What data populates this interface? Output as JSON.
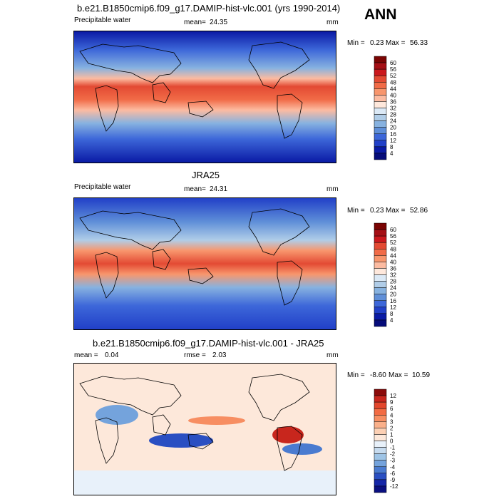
{
  "season_label": "ANN",
  "chart_data": [
    {
      "type": "heatmap",
      "title": "b.e21.B1850cmip6.f09_g17.DAMIP-hist-vlc.001 (yrs 1990-2014)",
      "variable": "Precipitable water",
      "mean_label": "mean=",
      "mean_value": "24.35",
      "units": "mm",
      "min_label": "Min =",
      "min_value": "0.23",
      "max_label": "Max =",
      "max_value": "56.33",
      "colorbar_levels": [
        "60",
        "56",
        "52",
        "48",
        "44",
        "40",
        "36",
        "32",
        "28",
        "24",
        "20",
        "16",
        "12",
        "8",
        "4"
      ],
      "colorbar_colors": [
        "#7a0403",
        "#a50f15",
        "#cb181d",
        "#e34a33",
        "#f16b47",
        "#f8966d",
        "#fcbba1",
        "#fee8dc",
        "#dbe9f6",
        "#b0cde8",
        "#87b2e0",
        "#5f8fd8",
        "#3d67d9",
        "#2140c8",
        "#0a1aa5",
        "#060c7a"
      ],
      "range": [
        0,
        64
      ]
    },
    {
      "type": "heatmap",
      "title": "JRA25",
      "variable": "Precipitable water",
      "mean_label": "mean=",
      "mean_value": "24.31",
      "units": "mm",
      "min_label": "Min =",
      "min_value": "0.23",
      "max_label": "Max =",
      "max_value": "52.86",
      "colorbar_levels": [
        "60",
        "56",
        "52",
        "48",
        "44",
        "40",
        "36",
        "32",
        "28",
        "24",
        "20",
        "16",
        "12",
        "8",
        "4"
      ],
      "colorbar_colors": [
        "#7a0403",
        "#a50f15",
        "#cb181d",
        "#e34a33",
        "#f16b47",
        "#f8966d",
        "#fcbba1",
        "#fee8dc",
        "#dbe9f6",
        "#b0cde8",
        "#87b2e0",
        "#5f8fd8",
        "#3d67d9",
        "#2140c8",
        "#0a1aa5",
        "#060c7a"
      ],
      "range": [
        0,
        64
      ]
    },
    {
      "type": "heatmap",
      "title": "b.e21.B1850cmip6.f09_g17.DAMIP-hist-vlc.001 - JRA25",
      "mean_label": "mean =",
      "mean_value": "0.04",
      "rmse_label": "rmse =",
      "rmse_value": "2.03",
      "units": "mm",
      "min_label": "Min =",
      "min_value": "-8.60",
      "max_label": "Max =",
      "max_value": "10.59",
      "colorbar_levels": [
        "12",
        "9",
        "6",
        "4",
        "3",
        "2",
        "1",
        "0",
        "-1",
        "-2",
        "-3",
        "-4",
        "-6",
        "-9",
        "-12"
      ],
      "colorbar_colors": [
        "#8b0a0a",
        "#c8261d",
        "#e3472d",
        "#f26b43",
        "#f78e62",
        "#fab08a",
        "#fcd0b4",
        "#fde8da",
        "#e8f1fa",
        "#c6dbef",
        "#9ec4e6",
        "#74a3dc",
        "#4a7bd0",
        "#2a4fc2",
        "#1526a8",
        "#0a0f80"
      ],
      "range": [
        -15,
        15
      ]
    }
  ]
}
